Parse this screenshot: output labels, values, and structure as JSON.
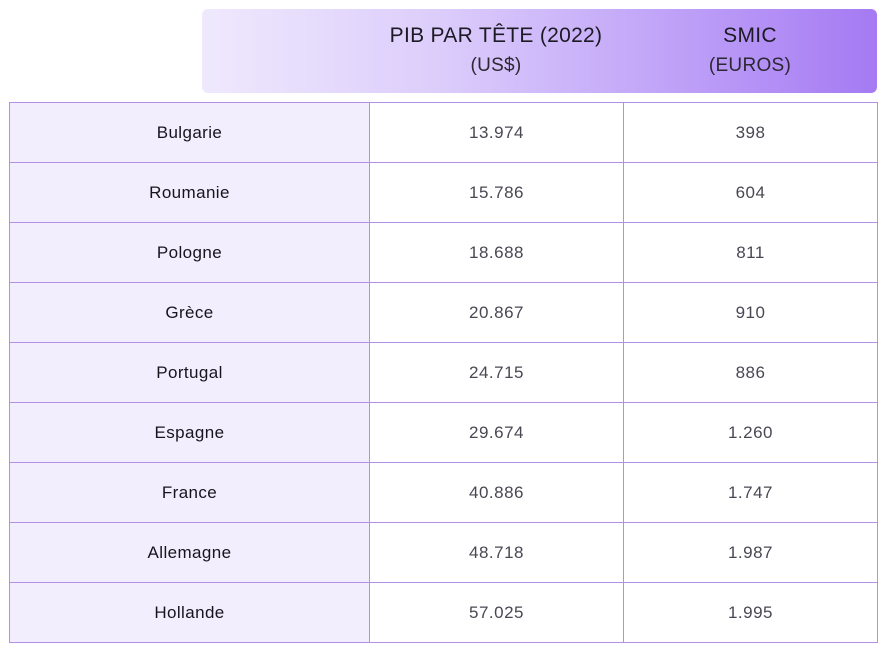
{
  "header": {
    "gdp_title": "PIB PAR TÊTE (2022)",
    "gdp_unit": "(US$)",
    "smic_title": "SMIC",
    "smic_unit": "(EUROS)"
  },
  "rows": [
    {
      "country": "Bulgarie",
      "gdp": "13.974",
      "smic": "398"
    },
    {
      "country": "Roumanie",
      "gdp": "15.786",
      "smic": "604"
    },
    {
      "country": "Pologne",
      "gdp": "18.688",
      "smic": "811"
    },
    {
      "country": "Grèce",
      "gdp": "20.867",
      "smic": "910"
    },
    {
      "country": "Portugal",
      "gdp": "24.715",
      "smic": "886"
    },
    {
      "country": "Espagne",
      "gdp": "29.674",
      "smic": "1.260"
    },
    {
      "country": "France",
      "gdp": "40.886",
      "smic": "1.747"
    },
    {
      "country": "Allemagne",
      "gdp": "48.718",
      "smic": "1.987"
    },
    {
      "country": "Hollande",
      "gdp": "57.025",
      "smic": "1.995"
    }
  ],
  "colors": {
    "header_gradient_start": "#efe9fd",
    "header_gradient_end": "#a57af3",
    "border": "#b58ee6",
    "country_cell_bg": "#f3eefd"
  }
}
